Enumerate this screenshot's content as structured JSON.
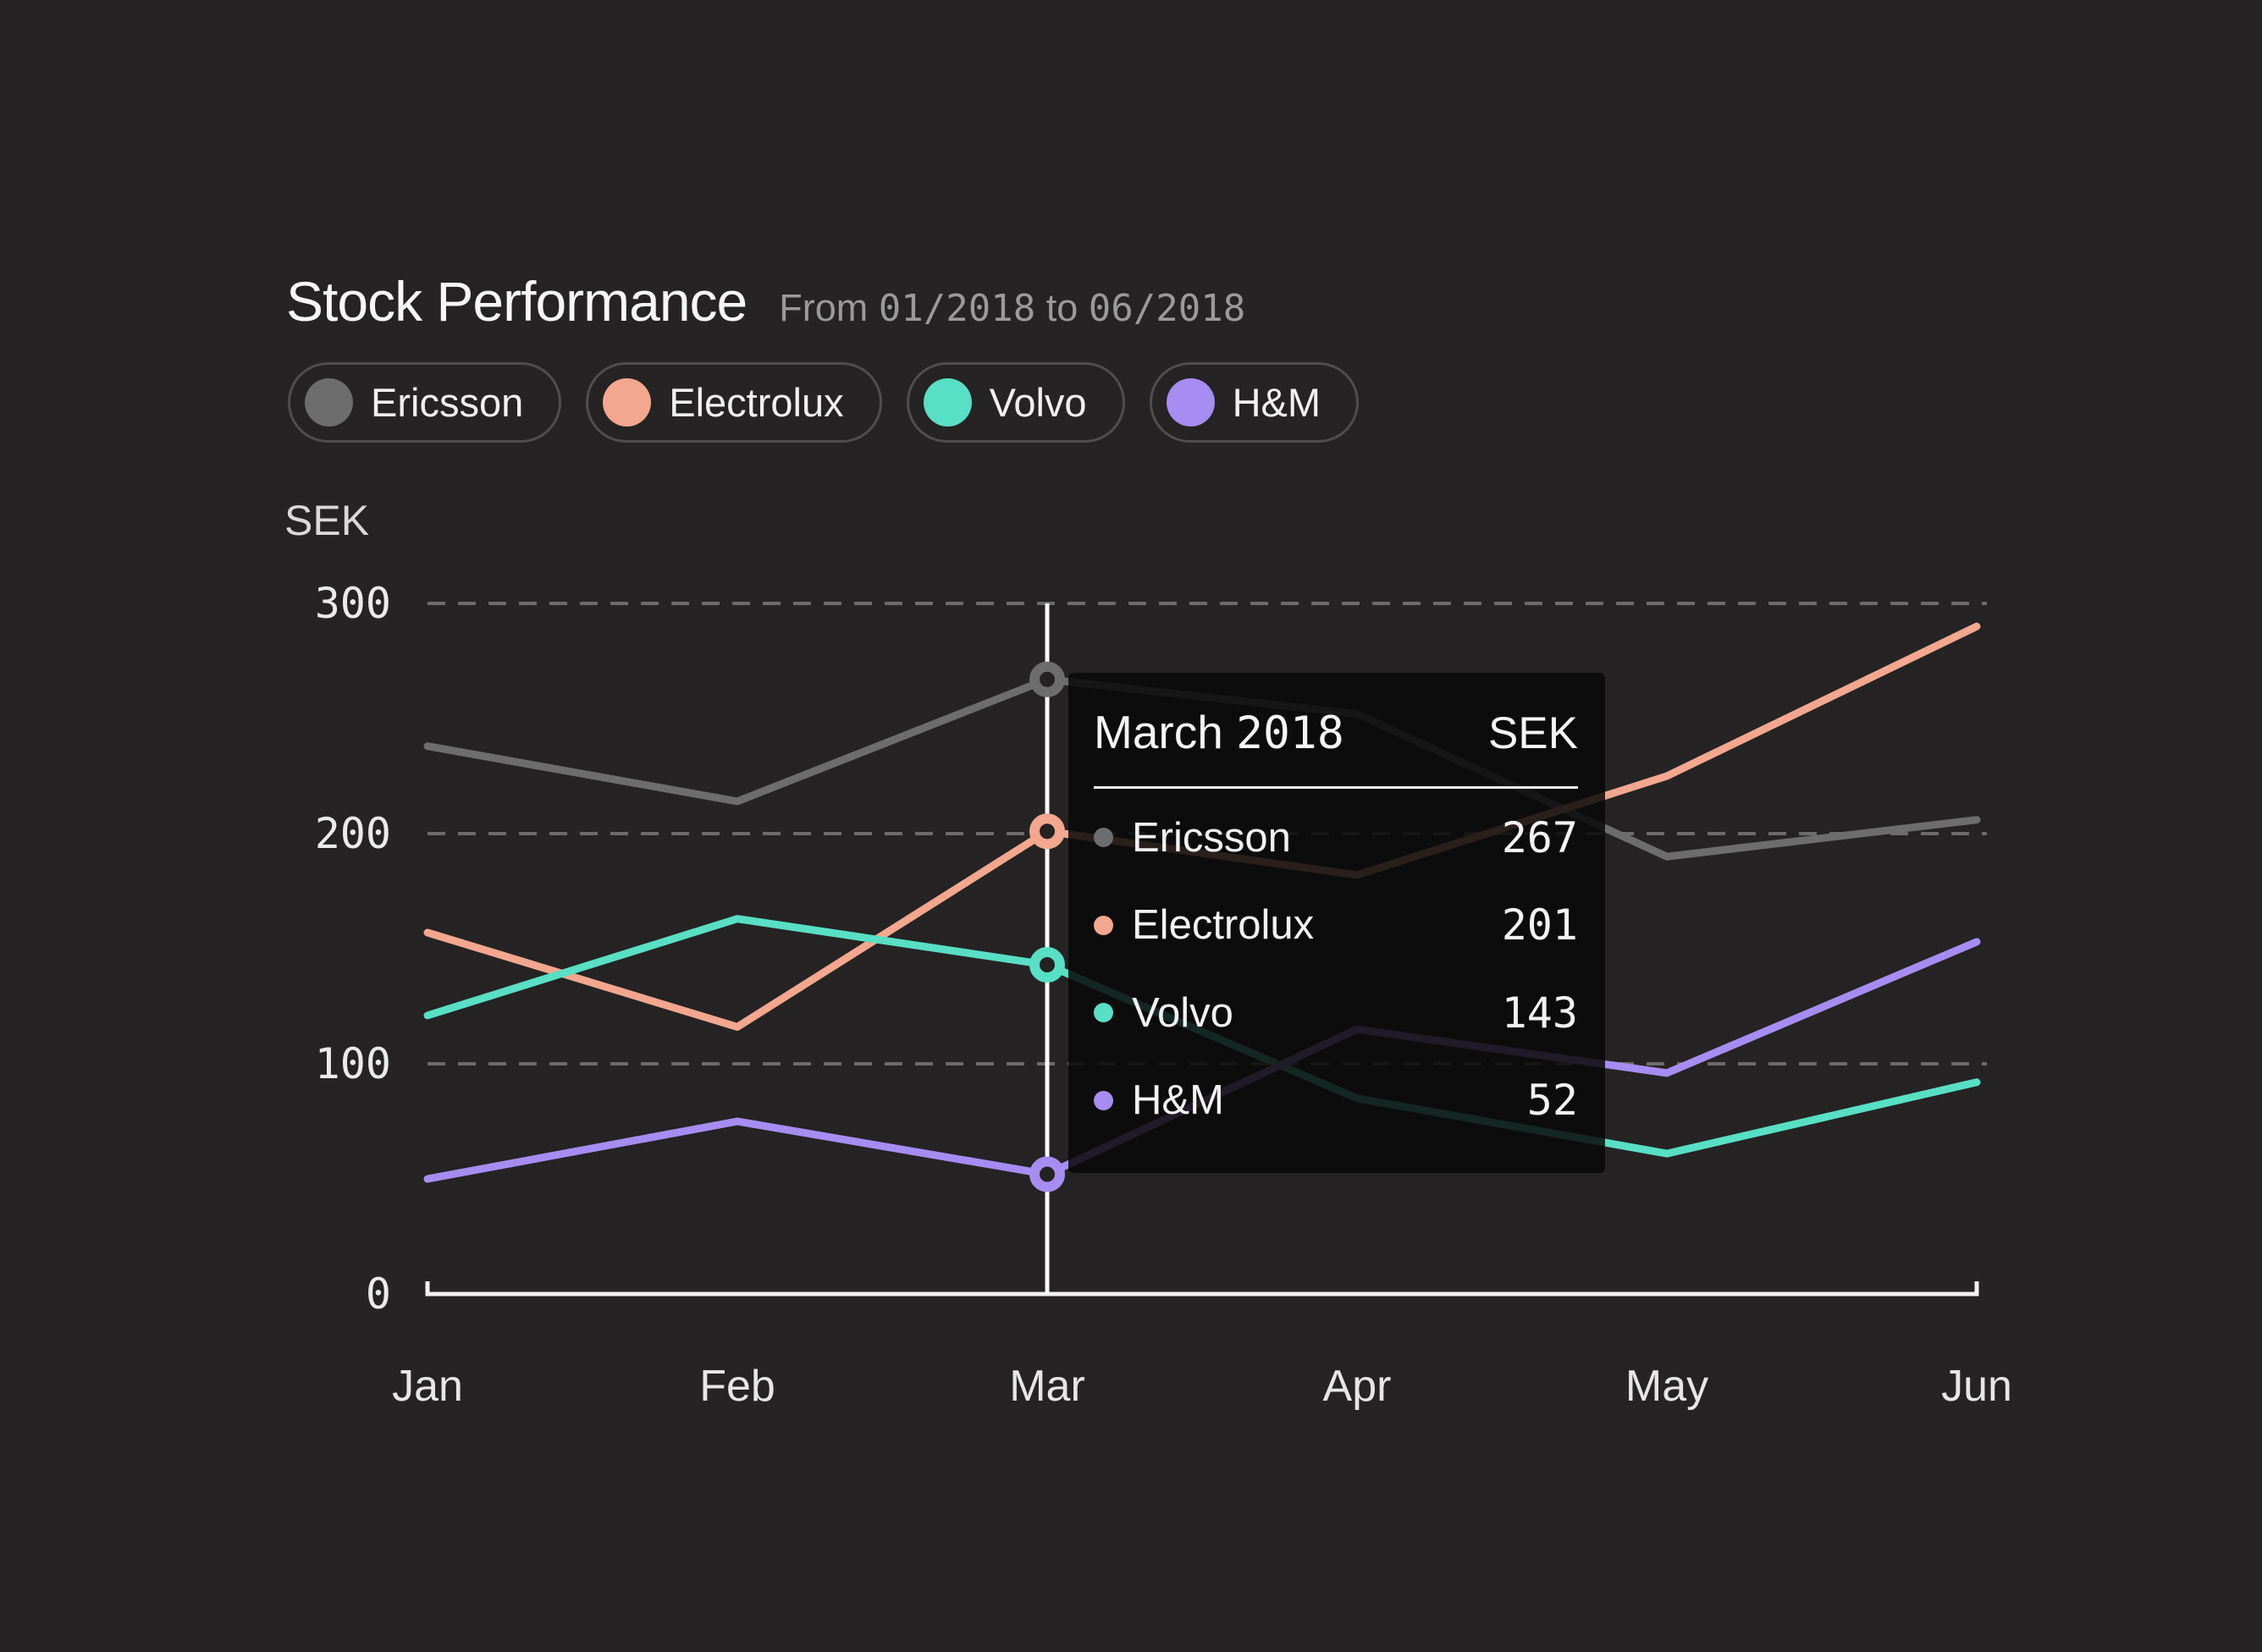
{
  "header": {
    "title": "Stock Performance",
    "subtitle": {
      "from_label": "From",
      "start": "01/2018",
      "to_label": "to",
      "end": "06/2018"
    }
  },
  "axis": {
    "unit_label": "SEK"
  },
  "chart_data": {
    "type": "line",
    "title": "Stock Performance",
    "xlabel": "",
    "ylabel": "SEK",
    "categories": [
      "Jan",
      "Feb",
      "Mar",
      "Apr",
      "May",
      "Jun"
    ],
    "series": [
      {
        "name": "Ericsson",
        "color": "#6d6d6d",
        "values": [
          238,
          214,
          267,
          252,
          190,
          206
        ]
      },
      {
        "name": "Electrolux",
        "color": "#f2a78e",
        "values": [
          157,
          116,
          201,
          182,
          225,
          290
        ]
      },
      {
        "name": "Volvo",
        "color": "#58dfc5",
        "values": [
          121,
          163,
          143,
          85,
          61,
          92
        ]
      },
      {
        "name": "H&M",
        "color": "#a78cf2",
        "values": [
          50,
          75,
          52,
          115,
          96,
          153
        ]
      }
    ],
    "ylim": [
      0,
      300
    ],
    "yticks": [
      0,
      100,
      200,
      300
    ],
    "grid": "horizontal-dashed",
    "legend_position": "top",
    "highlight_category_index": 2
  },
  "tooltip": {
    "title_month": "March",
    "title_year": "2018",
    "unit": "SEK",
    "rows": [
      {
        "name": "Ericsson",
        "value": "267"
      },
      {
        "name": "Electrolux",
        "value": "201"
      },
      {
        "name": "Volvo",
        "value": "143"
      },
      {
        "name": "H&M",
        "value": "52"
      }
    ]
  }
}
